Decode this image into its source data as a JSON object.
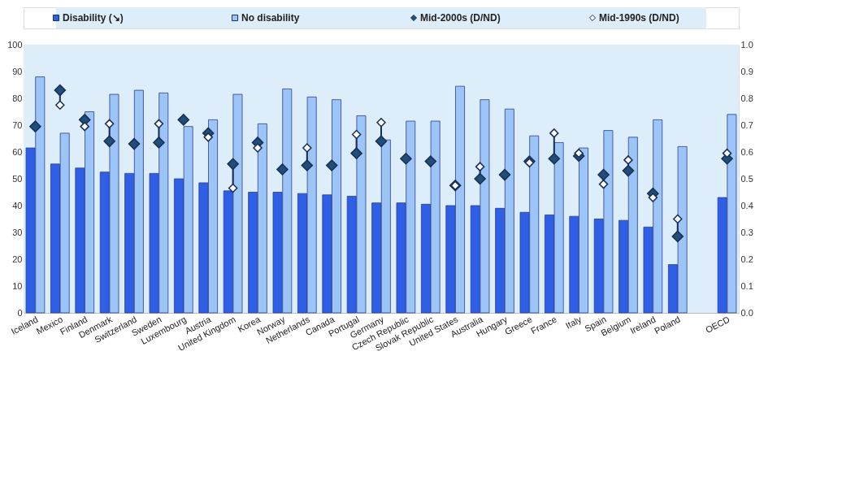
{
  "chart_data": {
    "type": "bar",
    "categories": [
      "Iceland",
      "Mexico",
      "Finland",
      "Denmark",
      "Switzerland",
      "Sweden",
      "Luxembourg",
      "Austria",
      "United Kingdom",
      "Korea",
      "Norway",
      "Netherlands",
      "Canada",
      "Portugal",
      "Germany",
      "Czech Republic",
      "Slovak Republic",
      "United States",
      "Australia",
      "Hungary",
      "Greece",
      "France",
      "Italy",
      "Spain",
      "Belgium",
      "Ireland",
      "Poland",
      null,
      "OECD"
    ],
    "series": [
      {
        "name": "Disability (↘)",
        "color": "#2f5fe6",
        "values": [
          61.5,
          55.5,
          54,
          52.5,
          52,
          52,
          50,
          48.5,
          45.5,
          45,
          45,
          44.5,
          44,
          43.5,
          41,
          41,
          40.5,
          40,
          40,
          39,
          37.5,
          36.5,
          36,
          35,
          34.5,
          32,
          18,
          null,
          43
        ]
      },
      {
        "name": "No disability",
        "color": "#9cc4f6",
        "values": [
          88,
          67,
          75,
          81.5,
          83,
          82,
          69.5,
          72,
          81.5,
          70.5,
          83.5,
          80.5,
          79.5,
          73.5,
          64.5,
          71.5,
          71.5,
          84.5,
          79.5,
          76,
          66,
          63.5,
          61.5,
          68,
          65.5,
          72,
          62,
          null,
          74
        ]
      },
      {
        "name": "Mid-2000s (D/ND)",
        "type": "scatter",
        "axis": "y2",
        "color": "#1f4e79",
        "values": [
          0.695,
          0.83,
          0.72,
          0.64,
          0.63,
          0.635,
          0.72,
          0.67,
          0.555,
          0.635,
          0.535,
          0.55,
          0.55,
          0.595,
          0.64,
          0.575,
          0.565,
          0.475,
          0.5,
          0.515,
          0.565,
          0.575,
          0.585,
          0.515,
          0.53,
          0.445,
          0.285,
          null,
          0.575
        ]
      },
      {
        "name": "Mid-1990s (D/ND)",
        "type": "scatter",
        "axis": "y2",
        "color": "#ffffff",
        "values": [
          null,
          0.775,
          0.695,
          0.705,
          null,
          0.705,
          null,
          0.655,
          0.465,
          0.615,
          null,
          0.615,
          null,
          0.665,
          0.71,
          null,
          null,
          0.475,
          0.545,
          null,
          0.56,
          0.67,
          0.595,
          0.48,
          0.57,
          0.43,
          0.35,
          null,
          0.595
        ]
      }
    ],
    "ylim": [
      0,
      100
    ],
    "yticks": [
      0,
      10,
      20,
      30,
      40,
      50,
      60,
      70,
      80,
      90,
      100
    ],
    "y2lim": [
      0,
      1
    ],
    "y2ticks": [
      {
        "value": 0,
        "label": "0.0"
      },
      0.1,
      0.2,
      0.3,
      0.4,
      0.5,
      0.6,
      0.7,
      0.8,
      0.9,
      {
        "value": 1,
        "label": "1.0"
      }
    ],
    "grid": "y",
    "legend": "top",
    "marker": "diamond"
  }
}
